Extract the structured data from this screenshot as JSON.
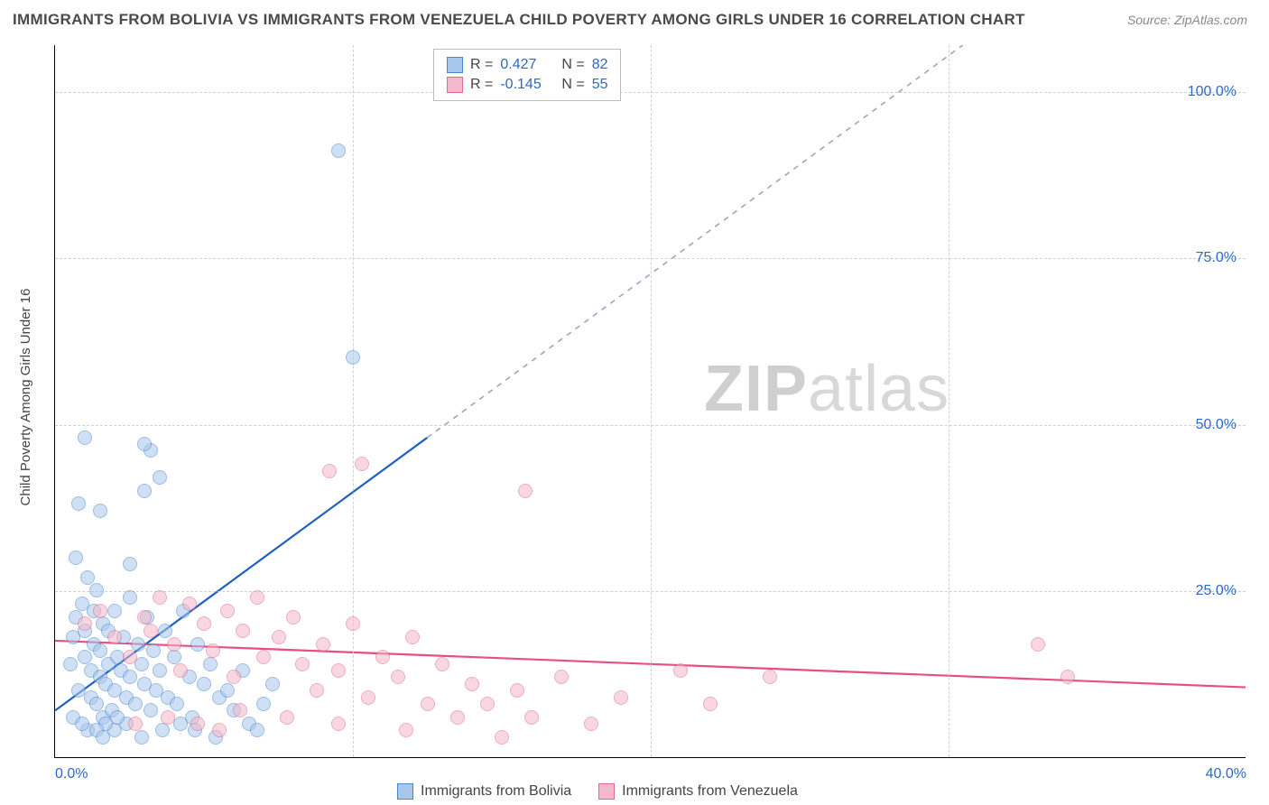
{
  "title": "IMMIGRANTS FROM BOLIVIA VS IMMIGRANTS FROM VENEZUELA CHILD POVERTY AMONG GIRLS UNDER 16 CORRELATION CHART",
  "source": "Source: ZipAtlas.com",
  "ylabel": "Child Poverty Among Girls Under 16",
  "watermark_a": "ZIP",
  "watermark_b": "atlas",
  "chart": {
    "type": "scatter",
    "xlim": [
      0,
      40
    ],
    "ylim": [
      0,
      107
    ],
    "x_ticks": [
      0,
      40
    ],
    "x_tick_labels": [
      "0.0%",
      "40.0%"
    ],
    "y_ticks": [
      25,
      50,
      75,
      100
    ],
    "y_tick_labels": [
      "25.0%",
      "50.0%",
      "75.0%",
      "100.0%"
    ],
    "grid_color": "#d0d0d0",
    "background_color": "#ffffff",
    "axis_color": "#000000",
    "marker_radius": 8,
    "marker_opacity": 0.55,
    "series": [
      {
        "name": "Immigrants from Bolivia",
        "fill_color": "#a8c7ec",
        "stroke_color": "#4a86d0",
        "trend_color": "#1f5fc4",
        "trend_dash_color": "#9aa7c0",
        "r": "0.427",
        "n": "82",
        "trend_solid": {
          "x1": 0,
          "y1": 7,
          "x2": 12.5,
          "y2": 48
        },
        "trend_dash": {
          "x1": 12.5,
          "y1": 48,
          "x2": 30.5,
          "y2": 107
        },
        "points": [
          [
            0.5,
            14
          ],
          [
            0.6,
            18
          ],
          [
            0.7,
            21
          ],
          [
            0.8,
            10
          ],
          [
            0.9,
            23
          ],
          [
            1.0,
            15
          ],
          [
            1.0,
            19
          ],
          [
            1.1,
            27
          ],
          [
            1.2,
            9
          ],
          [
            1.2,
            13
          ],
          [
            1.3,
            17
          ],
          [
            1.3,
            22
          ],
          [
            1.4,
            8
          ],
          [
            1.4,
            25
          ],
          [
            1.5,
            12
          ],
          [
            1.5,
            16
          ],
          [
            1.6,
            20
          ],
          [
            1.6,
            6
          ],
          [
            1.7,
            11
          ],
          [
            1.8,
            14
          ],
          [
            1.8,
            19
          ],
          [
            1.9,
            7
          ],
          [
            2.0,
            10
          ],
          [
            2.0,
            22
          ],
          [
            2.1,
            15
          ],
          [
            2.2,
            13
          ],
          [
            2.3,
            18
          ],
          [
            2.4,
            9
          ],
          [
            2.5,
            12
          ],
          [
            2.5,
            24
          ],
          [
            2.7,
            8
          ],
          [
            2.8,
            17
          ],
          [
            2.9,
            14
          ],
          [
            3.0,
            11
          ],
          [
            3.1,
            21
          ],
          [
            3.2,
            7
          ],
          [
            3.3,
            16
          ],
          [
            3.4,
            10
          ],
          [
            3.5,
            13
          ],
          [
            3.7,
            19
          ],
          [
            3.8,
            9
          ],
          [
            4.0,
            15
          ],
          [
            4.1,
            8
          ],
          [
            4.3,
            22
          ],
          [
            4.5,
            12
          ],
          [
            4.6,
            6
          ],
          [
            4.8,
            17
          ],
          [
            5.0,
            11
          ],
          [
            5.2,
            14
          ],
          [
            5.5,
            9
          ],
          [
            5.8,
            10
          ],
          [
            6.0,
            7
          ],
          [
            6.3,
            13
          ],
          [
            6.5,
            5
          ],
          [
            7.0,
            8
          ],
          [
            7.3,
            11
          ],
          [
            0.8,
            38
          ],
          [
            1.5,
            37
          ],
          [
            3.0,
            40
          ],
          [
            3.2,
            46
          ],
          [
            2.5,
            29
          ],
          [
            0.7,
            30
          ],
          [
            1.0,
            48
          ],
          [
            3.0,
            47
          ],
          [
            3.5,
            42
          ],
          [
            9.5,
            91
          ],
          [
            10.0,
            60
          ],
          [
            4.7,
            4
          ],
          [
            5.4,
            3
          ],
          [
            6.8,
            4
          ],
          [
            2.9,
            3
          ],
          [
            3.6,
            4
          ],
          [
            1.1,
            4
          ],
          [
            2.0,
            4
          ],
          [
            2.4,
            5
          ],
          [
            1.7,
            5
          ],
          [
            1.4,
            4
          ],
          [
            0.6,
            6
          ],
          [
            0.9,
            5
          ],
          [
            1.6,
            3
          ],
          [
            2.1,
            6
          ],
          [
            4.2,
            5
          ]
        ]
      },
      {
        "name": "Immigrants from Venezuela",
        "fill_color": "#f3b8c9",
        "stroke_color": "#e06a8f",
        "trend_color": "#e94d82",
        "r": "-0.145",
        "n": "55",
        "trend_solid": {
          "x1": 0,
          "y1": 17.5,
          "x2": 40,
          "y2": 10.5
        },
        "points": [
          [
            1.0,
            20
          ],
          [
            1.5,
            22
          ],
          [
            2.0,
            18
          ],
          [
            2.5,
            15
          ],
          [
            3.0,
            21
          ],
          [
            3.2,
            19
          ],
          [
            3.5,
            24
          ],
          [
            4.0,
            17
          ],
          [
            4.2,
            13
          ],
          [
            4.5,
            23
          ],
          [
            5.0,
            20
          ],
          [
            5.3,
            16
          ],
          [
            5.8,
            22
          ],
          [
            6.0,
            12
          ],
          [
            6.3,
            19
          ],
          [
            6.8,
            24
          ],
          [
            7.0,
            15
          ],
          [
            7.5,
            18
          ],
          [
            8.0,
            21
          ],
          [
            8.3,
            14
          ],
          [
            8.8,
            10
          ],
          [
            9.0,
            17
          ],
          [
            9.5,
            13
          ],
          [
            10.0,
            20
          ],
          [
            10.5,
            9
          ],
          [
            11.0,
            15
          ],
          [
            11.5,
            12
          ],
          [
            12.0,
            18
          ],
          [
            12.5,
            8
          ],
          [
            13.0,
            14
          ],
          [
            13.5,
            6
          ],
          [
            14.0,
            11
          ],
          [
            14.5,
            8
          ],
          [
            15.0,
            3
          ],
          [
            15.5,
            10
          ],
          [
            16.0,
            6
          ],
          [
            17.0,
            12
          ],
          [
            18.0,
            5
          ],
          [
            19.0,
            9
          ],
          [
            9.2,
            43
          ],
          [
            15.8,
            40
          ],
          [
            10.3,
            44
          ],
          [
            21.0,
            13
          ],
          [
            22.0,
            8
          ],
          [
            24.0,
            12
          ],
          [
            33.0,
            17
          ],
          [
            34.0,
            12
          ],
          [
            4.8,
            5
          ],
          [
            6.2,
            7
          ],
          [
            7.8,
            6
          ],
          [
            9.5,
            5
          ],
          [
            11.8,
            4
          ],
          [
            5.5,
            4
          ],
          [
            3.8,
            6
          ],
          [
            2.7,
            5
          ]
        ]
      }
    ]
  },
  "legend_top": {
    "r_label": "R =",
    "n_label": "N ="
  },
  "legend_bottom": [
    "Immigrants from Bolivia",
    "Immigrants from Venezuela"
  ]
}
